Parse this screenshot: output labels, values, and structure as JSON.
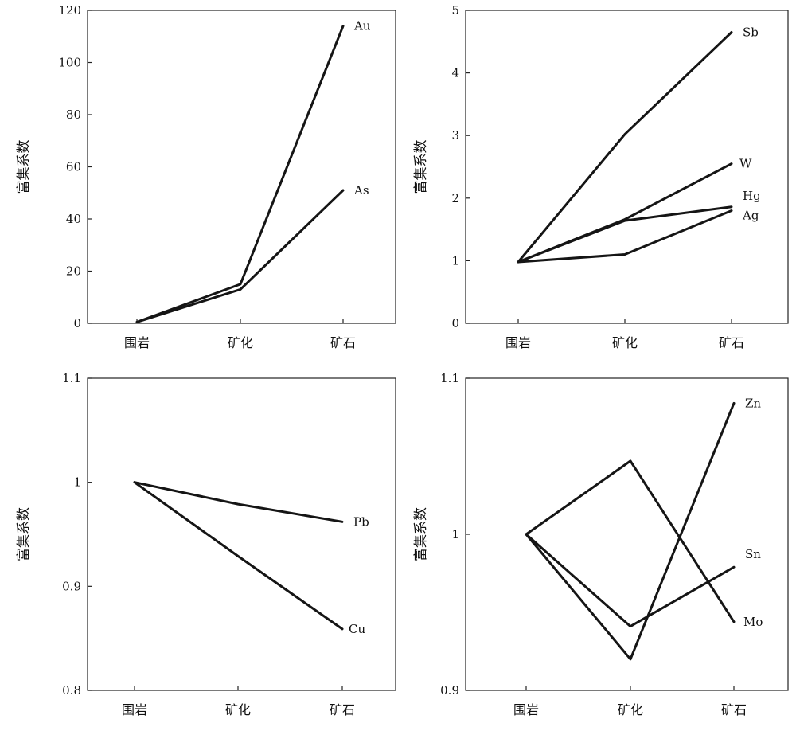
{
  "chart_data": [
    {
      "type": "line",
      "title": "",
      "xlabel": "",
      "ylabel": "富集系数",
      "categories": [
        "围岩",
        "矿化",
        "矿石"
      ],
      "ylim": [
        0,
        120
      ],
      "yticks": [
        0,
        20,
        40,
        60,
        80,
        100,
        120
      ],
      "ytick_labels": [
        "0",
        "20",
        "40",
        "60",
        "80",
        "100",
        "120"
      ],
      "series": [
        {
          "name": "Au",
          "values": [
            0.5,
            15,
            114
          ]
        },
        {
          "name": "As",
          "values": [
            0.5,
            13,
            51
          ]
        }
      ]
    },
    {
      "type": "line",
      "title": "",
      "xlabel": "",
      "ylabel": "富集系数",
      "categories": [
        "围岩",
        "矿化",
        "矿石"
      ],
      "ylim": [
        0,
        5
      ],
      "yticks": [
        0,
        1,
        2,
        3,
        4,
        5
      ],
      "ytick_labels": [
        "0",
        "1",
        "2",
        "3",
        "4",
        "5"
      ],
      "series": [
        {
          "name": "Sb",
          "values": [
            0.98,
            3.02,
            4.65
          ]
        },
        {
          "name": "W",
          "values": [
            0.98,
            1.66,
            2.55
          ]
        },
        {
          "name": "Hg",
          "values": [
            0.98,
            1.64,
            1.86
          ]
        },
        {
          "name": "Ag",
          "values": [
            0.98,
            1.1,
            1.8
          ]
        }
      ]
    },
    {
      "type": "line",
      "title": "",
      "xlabel": "",
      "ylabel": "富集系数",
      "categories": [
        "围岩",
        "矿化",
        "矿石"
      ],
      "ylim": [
        0.8,
        1.1
      ],
      "yticks": [
        0.8,
        0.9,
        1.0,
        1.1
      ],
      "ytick_labels": [
        "0.8",
        "0.9",
        "1",
        "1.1"
      ],
      "series": [
        {
          "name": "Pb",
          "values": [
            1.0,
            0.979,
            0.962
          ]
        },
        {
          "name": "Cu",
          "values": [
            1.0,
            0.929,
            0.859
          ]
        }
      ]
    },
    {
      "type": "line",
      "title": "",
      "xlabel": "",
      "ylabel": "富集系数",
      "categories": [
        "围岩",
        "矿化",
        "矿石"
      ],
      "ylim": [
        0.9,
        1.1
      ],
      "yticks": [
        0.9,
        1.0,
        1.1
      ],
      "ytick_labels": [
        "0.9",
        "1",
        "1.1"
      ],
      "series": [
        {
          "name": "Zn",
          "values": [
            1.0,
            0.92,
            1.084
          ]
        },
        {
          "name": "Mo",
          "values": [
            1.0,
            1.047,
            0.944
          ]
        },
        {
          "name": "Sn",
          "values": [
            1.0,
            0.941,
            0.979
          ]
        }
      ]
    }
  ]
}
